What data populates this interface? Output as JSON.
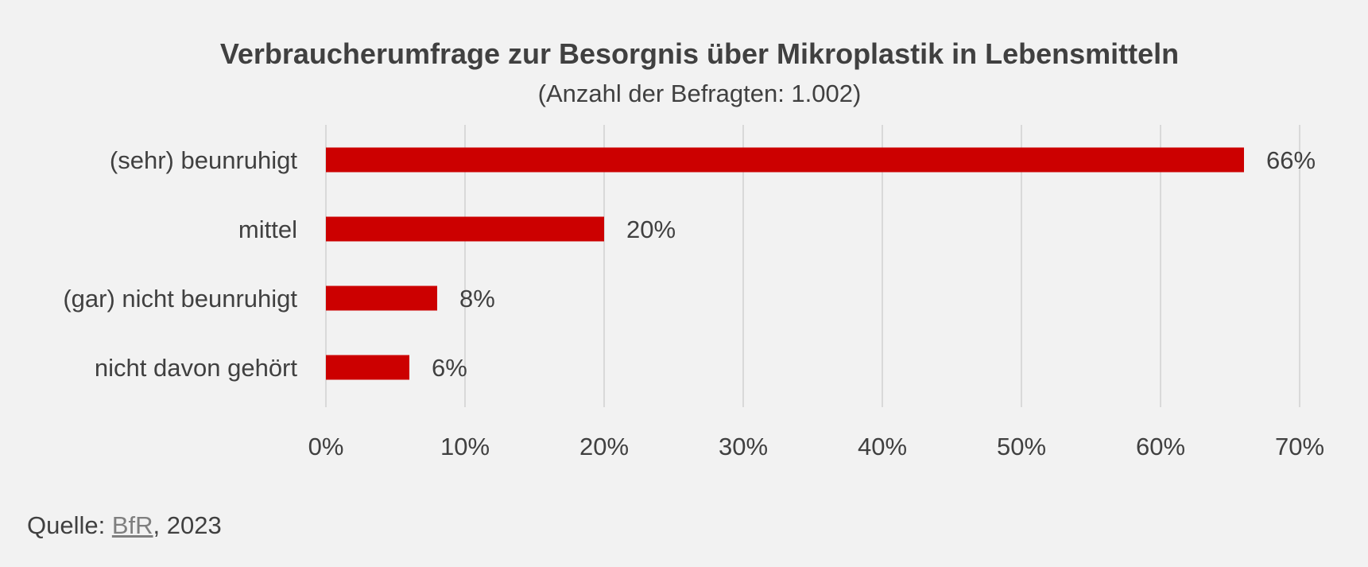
{
  "chart_data": {
    "type": "bar",
    "orientation": "horizontal",
    "title": "Verbraucherumfrage zur Besorgnis über Mikroplastik in Lebensmitteln",
    "subtitle": "(Anzahl der Befragten: 1.002)",
    "categories": [
      "(sehr) beunruhigt",
      "mittel",
      "(gar) nicht beunruhigt",
      "nicht davon gehört"
    ],
    "values": [
      66,
      20,
      8,
      6
    ],
    "data_labels": [
      "66%",
      "20%",
      "8%",
      "6%"
    ],
    "xlim": [
      0,
      70
    ],
    "xticks": [
      0,
      10,
      20,
      30,
      40,
      50,
      60,
      70
    ],
    "xtick_labels": [
      "0%",
      "10%",
      "20%",
      "30%",
      "40%",
      "50%",
      "60%",
      "70%"
    ],
    "xlabel": "",
    "ylabel": "",
    "grid": "vertical",
    "legend": "none",
    "bar_color": "#cc0000"
  },
  "source": {
    "prefix": "Quelle: ",
    "link_text": "BfR",
    "suffix": ", 2023"
  },
  "colors": {
    "background": "#f2f2f2",
    "text": "#404040",
    "grid": "#d9d9d9",
    "link": "#7f7f7f"
  }
}
